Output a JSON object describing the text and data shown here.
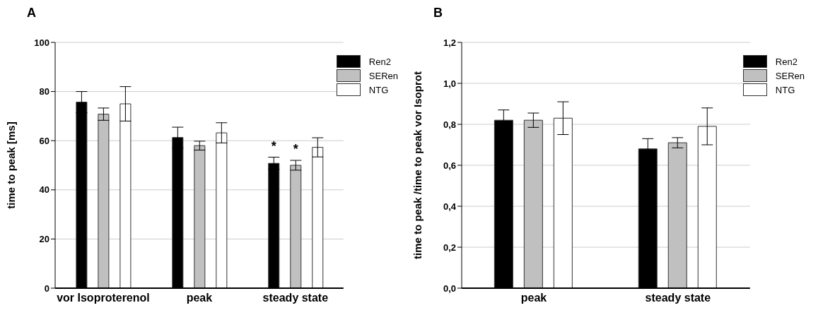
{
  "chart_data": [
    {
      "type": "bar",
      "title": "A",
      "ylabel": "time to peak [ms]",
      "categories": [
        "vor Isoproterenol",
        "peak",
        "steady state"
      ],
      "series": [
        {
          "name": "Ren2",
          "color": "#000000",
          "values": [
            75.7,
            61.3,
            50.8
          ],
          "errors": [
            4.3,
            4.2,
            2.5
          ],
          "value_labels": [
            null,
            null,
            "*"
          ]
        },
        {
          "name": "SERen",
          "color": "#c0c0c0",
          "values": [
            70.8,
            58,
            50
          ],
          "errors": [
            2.5,
            1.8,
            2
          ],
          "value_labels": [
            null,
            null,
            "*"
          ]
        },
        {
          "name": "NTG",
          "color": "#ffffff",
          "values": [
            75,
            63.2,
            57.3
          ],
          "errors": [
            7,
            4.1,
            3.9
          ]
        }
      ],
      "ylim": [
        0,
        100
      ],
      "yticks": [
        0,
        20,
        40,
        60,
        80,
        100
      ],
      "grid": "y",
      "legend": "top right"
    },
    {
      "type": "bar",
      "title": "B",
      "ylabel": "time to peak /time to peak vor Isoprot",
      "categories": [
        "peak",
        "steady state"
      ],
      "series": [
        {
          "name": "Ren2",
          "color": "#000000",
          "values": [
            0.82,
            0.68
          ],
          "errors": [
            0.05,
            0.05
          ]
        },
        {
          "name": "SERen",
          "color": "#c0c0c0",
          "values": [
            0.82,
            0.71
          ],
          "errors": [
            0.035,
            0.025
          ]
        },
        {
          "name": "NTG",
          "color": "#ffffff",
          "values": [
            0.83,
            0.79
          ],
          "errors": [
            0.08,
            0.09
          ]
        }
      ],
      "ylim": [
        0,
        1.2
      ],
      "yticks": [
        {
          "value": 0,
          "label": "0,0"
        },
        {
          "value": 0.2,
          "label": "0,2"
        },
        {
          "value": 0.4,
          "label": "0,4"
        },
        {
          "value": 0.6,
          "label": "0,6"
        },
        {
          "value": 0.8,
          "label": "0,8"
        },
        {
          "value": 1.0,
          "label": "1,0"
        },
        {
          "value": 1.2,
          "label": "1,2"
        }
      ],
      "grid": "y",
      "legend": "top right"
    }
  ]
}
